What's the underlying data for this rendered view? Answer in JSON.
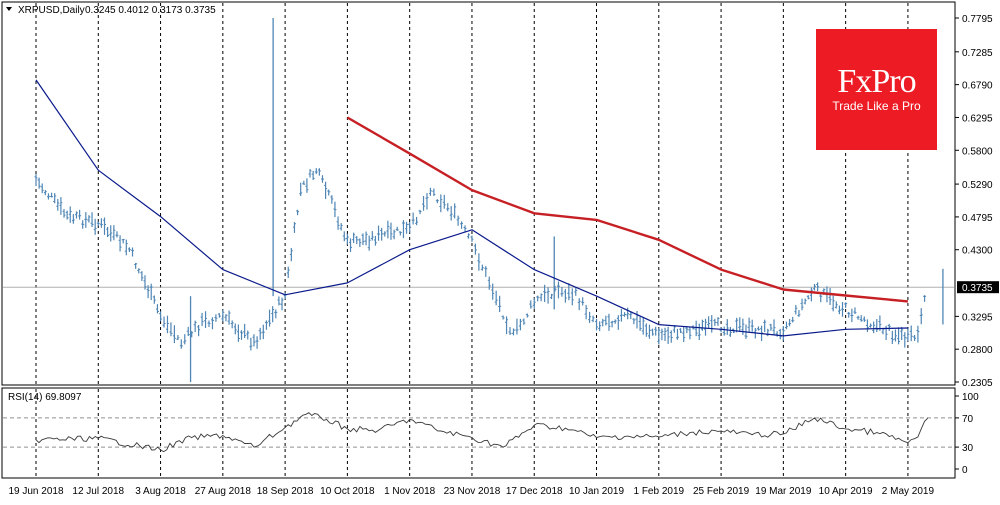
{
  "header": {
    "symbol": "XRPUSD,Daily",
    "ohlc": "0.3245 0.4012 0.3173 0.3735",
    "rsi_label": "RSI(14) 69.8097"
  },
  "logo": {
    "brand": "FxPro",
    "tagline": "Trade Like a Pro"
  },
  "colors": {
    "up_down_bars": "#4f86b5",
    "ma_short": "#0a1a8c",
    "ma_long": "#c62025",
    "rsi_line": "#3a3a3a",
    "logo_bg": "#ed1c24"
  },
  "chart_data": [
    {
      "type": "ohlc",
      "title": "XRPUSD,Daily",
      "x_labels": [
        "19 Jun 2018",
        "12 Jul 2018",
        "3 Aug 2018",
        "27 Aug 2018",
        "18 Sep 2018",
        "10 Oct 2018",
        "1 Nov 2018",
        "23 Nov 2018",
        "17 Dec 2018",
        "10 Jan 2019",
        "1 Feb 2019",
        "25 Feb 2019",
        "19 Mar 2019",
        "10 Apr 2019",
        "2 May 2019"
      ],
      "y_ticks": [
        "0.7795",
        "0.7285",
        "0.6790",
        "0.6295",
        "0.5800",
        "0.5290",
        "0.4795",
        "0.4300",
        "0.3735",
        "0.3295",
        "0.2800",
        "0.2305"
      ],
      "ylim": [
        0.2305,
        0.7795
      ],
      "current_price": "0.3735",
      "grid": "vertical dashed",
      "close_path": [
        {
          "x": "19 Jun 2018",
          "y": 0.535
        },
        {
          "x": "19 Jun 2018",
          "y": 0.48
        },
        {
          "x": "12 Jul 2018",
          "y": 0.47
        },
        {
          "x": "12 Jul 2018",
          "y": 0.43
        },
        {
          "x": "3 Aug 2018",
          "y": 0.33
        },
        {
          "x": "3 Aug 2018",
          "y": 0.29
        },
        {
          "x": "3 Aug 2018",
          "y": 0.32
        },
        {
          "x": "27 Aug 2018",
          "y": 0.33
        },
        {
          "x": "27 Aug 2018",
          "y": 0.29
        },
        {
          "x": "18 Sep 2018",
          "y": 0.36
        },
        {
          "x": "18 Sep 2018",
          "y": 0.52
        },
        {
          "x": "18 Sep 2018",
          "y": 0.55
        },
        {
          "x": "18 Sep 2018",
          "y": 0.5
        },
        {
          "x": "10 Oct 2018",
          "y": 0.44
        },
        {
          "x": "10 Oct 2018",
          "y": 0.45
        },
        {
          "x": "1 Nov 2018",
          "y": 0.46
        },
        {
          "x": "1 Nov 2018",
          "y": 0.52
        },
        {
          "x": "1 Nov 2018",
          "y": 0.49
        },
        {
          "x": "23 Nov 2018",
          "y": 0.44
        },
        {
          "x": "23 Nov 2018",
          "y": 0.37
        },
        {
          "x": "23 Nov 2018",
          "y": 0.3
        },
        {
          "x": "17 Dec 2018",
          "y": 0.35
        },
        {
          "x": "17 Dec 2018",
          "y": 0.37
        },
        {
          "x": "17 Dec 2018",
          "y": 0.36
        },
        {
          "x": "10 Jan 2019",
          "y": 0.32
        },
        {
          "x": "10 Jan 2019",
          "y": 0.33
        },
        {
          "x": "1 Feb 2019",
          "y": 0.3
        },
        {
          "x": "1 Feb 2019",
          "y": 0.31
        },
        {
          "x": "25 Feb 2019",
          "y": 0.315
        },
        {
          "x": "25 Feb 2019",
          "y": 0.31
        },
        {
          "x": "19 Mar 2019",
          "y": 0.31
        },
        {
          "x": "19 Mar 2019",
          "y": 0.37
        },
        {
          "x": "10 Apr 2019",
          "y": 0.34
        },
        {
          "x": "10 Apr 2019",
          "y": 0.315
        },
        {
          "x": "2 May 2019",
          "y": 0.295
        },
        {
          "x": "2 May 2019",
          "y": 0.3
        },
        {
          "x": "2 May 2019",
          "y": 0.3735
        }
      ],
      "series": [
        {
          "type": "line",
          "color": "#0a1a8c",
          "points": [
            {
              "x": "19 Jun 2018",
              "y": 0.6862
            },
            {
              "x": "12 Jul 2018",
              "y": 0.55
            },
            {
              "x": "3 Aug 2018",
              "y": 0.48
            },
            {
              "x": "27 Aug 2018",
              "y": 0.4
            },
            {
              "x": "18 Sep 2018",
              "y": 0.362
            },
            {
              "x": "10 Oct 2018",
              "y": 0.38
            },
            {
              "x": "1 Nov 2018",
              "y": 0.43
            },
            {
              "x": "23 Nov 2018",
              "y": 0.46
            },
            {
              "x": "17 Dec 2018",
              "y": 0.4
            },
            {
              "x": "10 Jan 2019",
              "y": 0.36
            },
            {
              "x": "1 Feb 2019",
              "y": 0.317
            },
            {
              "x": "25 Feb 2019",
              "y": 0.31
            },
            {
              "x": "19 Mar 2019",
              "y": 0.3
            },
            {
              "x": "10 Apr 2019",
              "y": 0.31
            },
            {
              "x": "2 May 2019",
              "y": 0.312
            }
          ]
        },
        {
          "type": "line",
          "color": "#c62025",
          "points": [
            {
              "x": "10 Oct 2018",
              "y": 0.6295
            },
            {
              "x": "1 Nov 2018",
              "y": 0.575
            },
            {
              "x": "23 Nov 2018",
              "y": 0.52
            },
            {
              "x": "17 Dec 2018",
              "y": 0.485
            },
            {
              "x": "10 Jan 2019",
              "y": 0.475
            },
            {
              "x": "1 Feb 2019",
              "y": 0.445
            },
            {
              "x": "25 Feb 2019",
              "y": 0.4
            },
            {
              "x": "19 Mar 2019",
              "y": 0.37
            },
            {
              "x": "10 Apr 2019",
              "y": 0.361
            },
            {
              "x": "2 May 2019",
              "y": 0.352
            }
          ]
        }
      ]
    },
    {
      "type": "line",
      "title": "RSI(14) 69.8097",
      "ylim": [
        0,
        100
      ],
      "y_ticks": [
        "100",
        "70",
        "30",
        "0"
      ],
      "levels": [
        70,
        30
      ],
      "points": [
        {
          "x": "19 Jun 2018",
          "y": 40
        },
        {
          "x": "12 Jul 2018",
          "y": 42
        },
        {
          "x": "3 Aug 2018",
          "y": 26
        },
        {
          "x": "3 Aug 2018",
          "y": 43
        },
        {
          "x": "27 Aug 2018",
          "y": 46
        },
        {
          "x": "27 Aug 2018",
          "y": 30
        },
        {
          "x": "18 Sep 2018",
          "y": 57
        },
        {
          "x": "18 Sep 2018",
          "y": 75
        },
        {
          "x": "18 Sep 2018",
          "y": 68
        },
        {
          "x": "10 Oct 2018",
          "y": 55
        },
        {
          "x": "10 Oct 2018",
          "y": 53
        },
        {
          "x": "1 Nov 2018",
          "y": 68
        },
        {
          "x": "1 Nov 2018",
          "y": 52
        },
        {
          "x": "23 Nov 2018",
          "y": 43
        },
        {
          "x": "23 Nov 2018",
          "y": 30
        },
        {
          "x": "17 Dec 2018",
          "y": 60
        },
        {
          "x": "17 Dec 2018",
          "y": 56
        },
        {
          "x": "10 Jan 2019",
          "y": 43
        },
        {
          "x": "10 Jan 2019",
          "y": 45
        },
        {
          "x": "1 Feb 2019",
          "y": 44
        },
        {
          "x": "1 Feb 2019",
          "y": 50
        },
        {
          "x": "25 Feb 2019",
          "y": 52
        },
        {
          "x": "25 Feb 2019",
          "y": 47
        },
        {
          "x": "19 Mar 2019",
          "y": 48
        },
        {
          "x": "19 Mar 2019",
          "y": 70
        },
        {
          "x": "10 Apr 2019",
          "y": 55
        },
        {
          "x": "10 Apr 2019",
          "y": 50
        },
        {
          "x": "2 May 2019",
          "y": 36
        },
        {
          "x": "2 May 2019",
          "y": 44
        },
        {
          "x": "2 May 2019",
          "y": 70
        }
      ]
    }
  ]
}
